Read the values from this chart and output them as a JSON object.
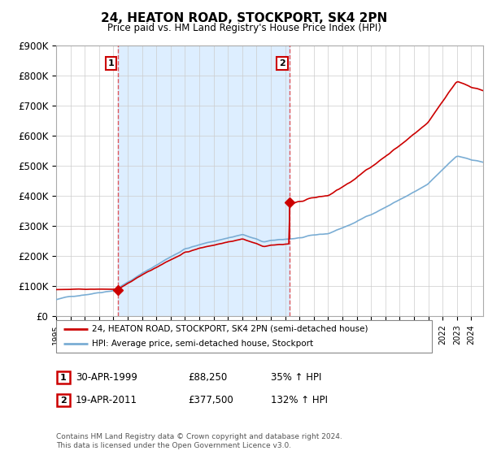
{
  "title": "24, HEATON ROAD, STOCKPORT, SK4 2PN",
  "subtitle": "Price paid vs. HM Land Registry's House Price Index (HPI)",
  "ylabel_ticks": [
    "£0",
    "£100K",
    "£200K",
    "£300K",
    "£400K",
    "£500K",
    "£600K",
    "£700K",
    "£800K",
    "£900K"
  ],
  "ylim": [
    0,
    900000
  ],
  "xlim_start": 1995.0,
  "xlim_end": 2024.83,
  "sale1_x": 1999.33,
  "sale1_y": 88250,
  "sale1_label": "1",
  "sale2_x": 2011.3,
  "sale2_y": 377500,
  "sale2_label": "2",
  "red_color": "#cc0000",
  "blue_color": "#7aadd4",
  "dashed_color": "#dd3333",
  "shade_color": "#ddeeff",
  "legend_line1": "24, HEATON ROAD, STOCKPORT, SK4 2PN (semi-detached house)",
  "legend_line2": "HPI: Average price, semi-detached house, Stockport",
  "table_row1": [
    "1",
    "30-APR-1999",
    "£88,250",
    "35% ↑ HPI"
  ],
  "table_row2": [
    "2",
    "19-APR-2011",
    "£377,500",
    "132% ↑ HPI"
  ],
  "footnote": "Contains HM Land Registry data © Crown copyright and database right 2024.\nThis data is licensed under the Open Government Licence v3.0.",
  "background_color": "#ffffff"
}
